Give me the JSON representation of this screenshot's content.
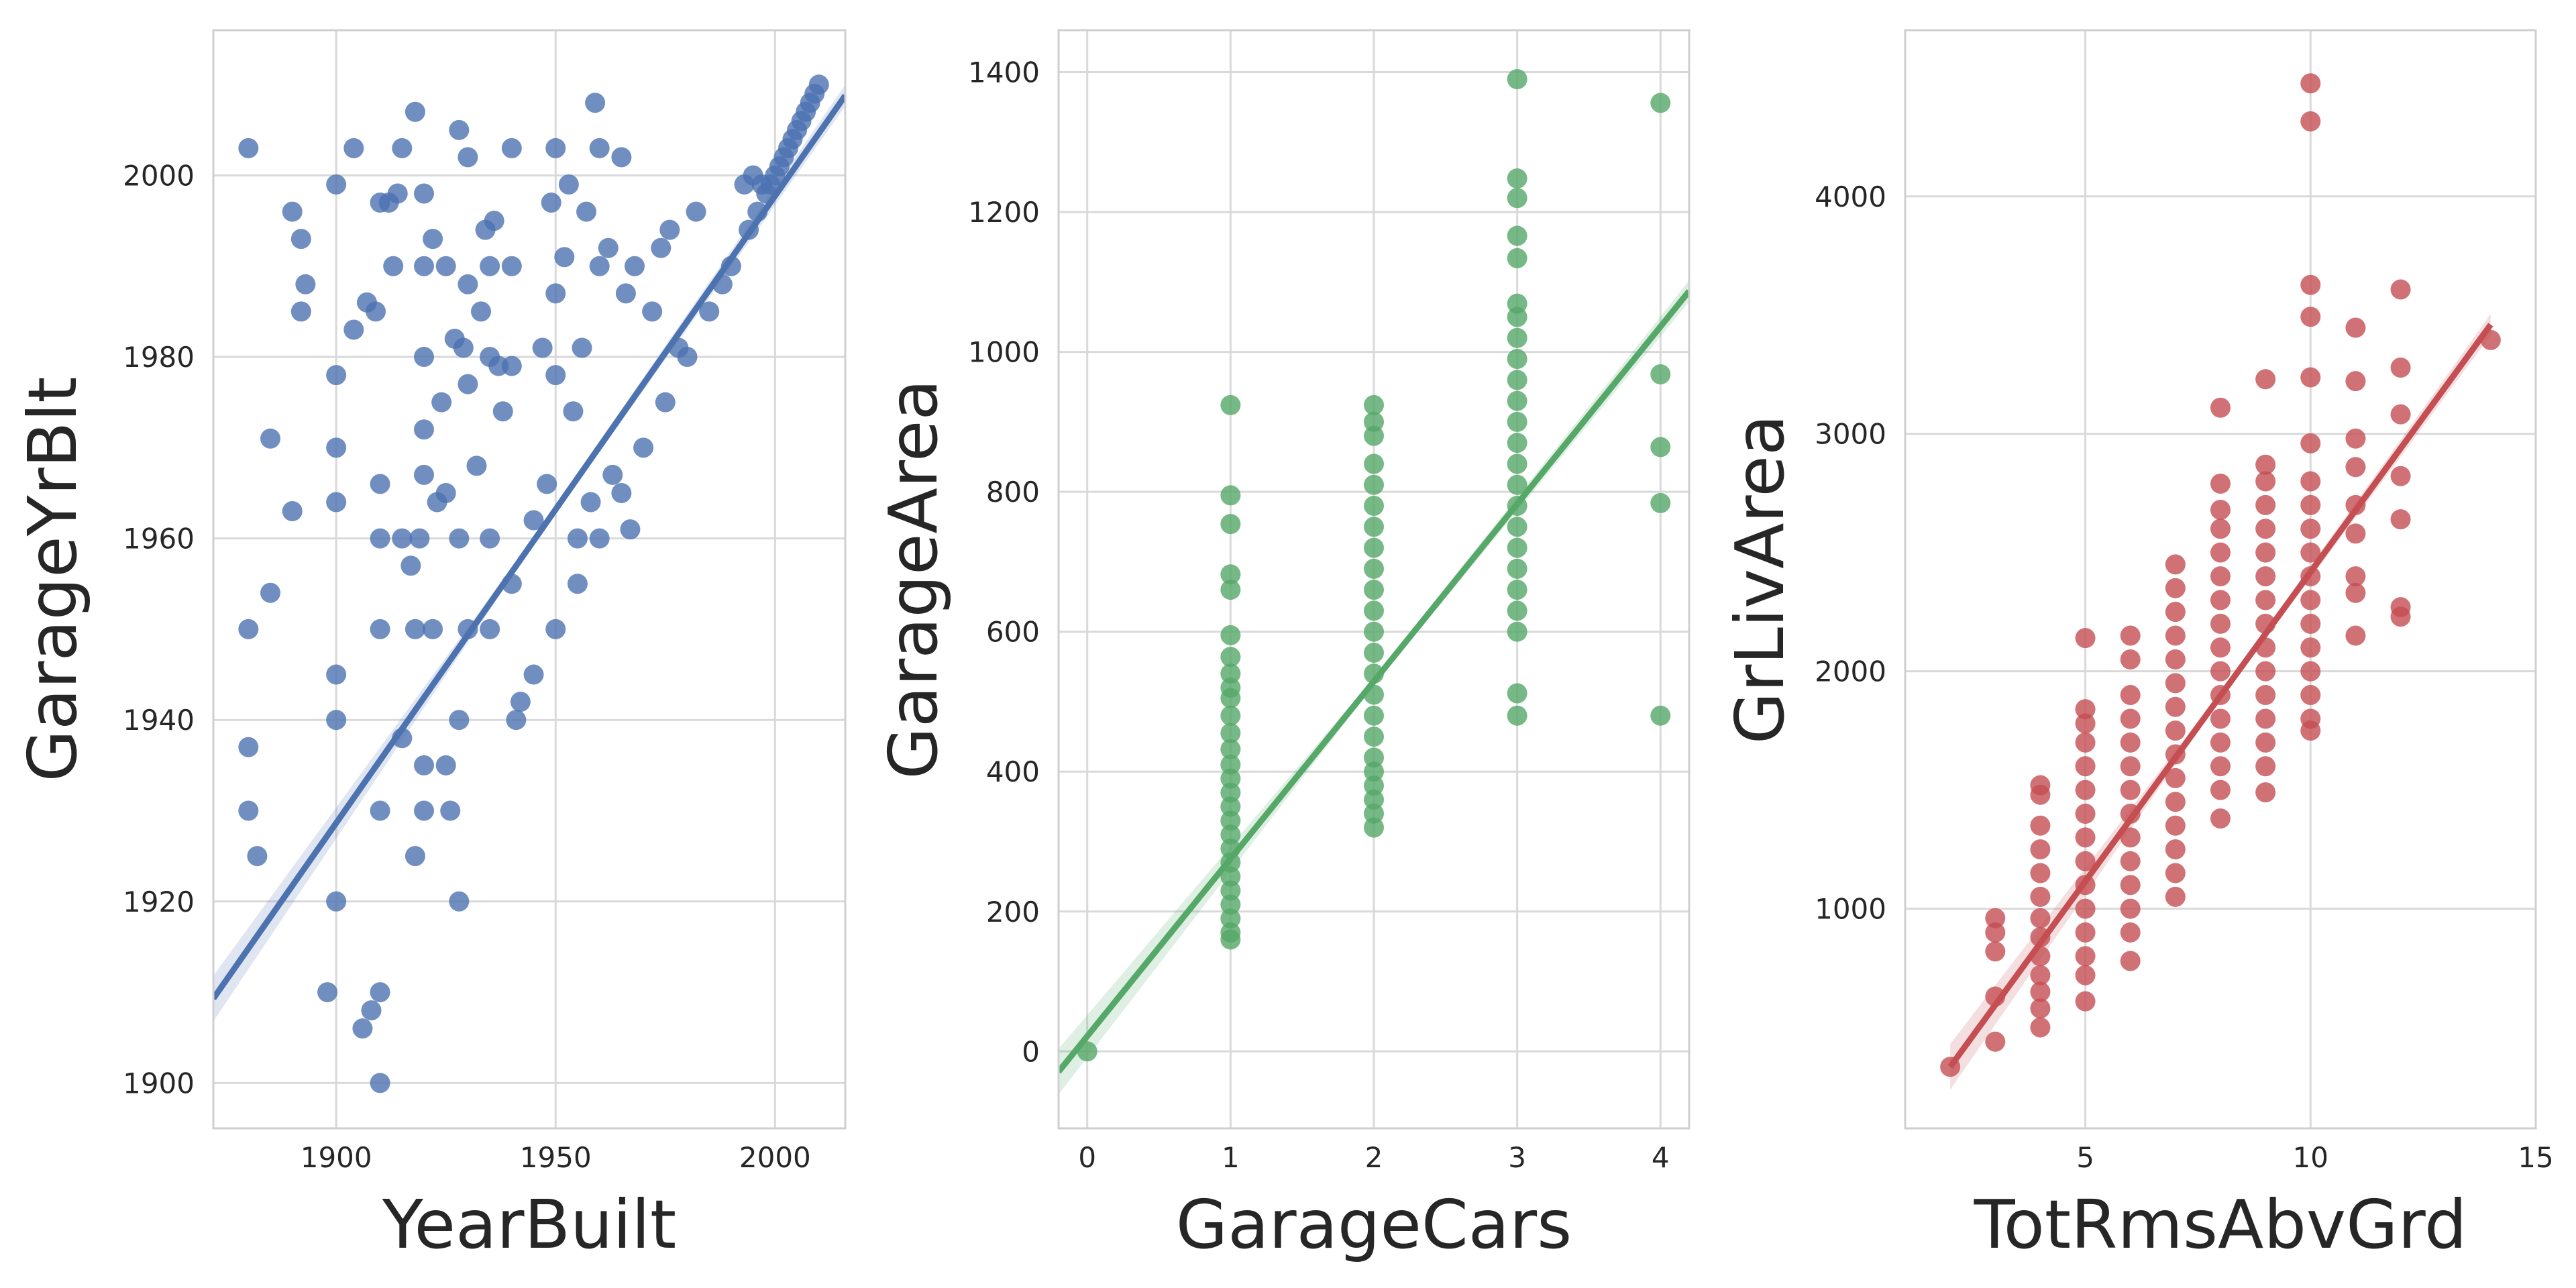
{
  "chart_data": [
    {
      "type": "scatter",
      "xlabel": "YearBuilt",
      "ylabel": "GarageYrBlt",
      "xlim": [
        1872,
        2016
      ],
      "ylim": [
        1895,
        2016
      ],
      "xticks": [
        1900,
        1950,
        2000
      ],
      "yticks": [
        1900,
        1920,
        1940,
        1960,
        1980,
        2000
      ],
      "color": "#4C72B0",
      "grid": true,
      "regression": {
        "x": [
          1872,
          2016
        ],
        "y": [
          1909.3,
          2008.8
        ]
      },
      "points": [
        [
          1880,
          2003
        ],
        [
          1880,
          1950
        ],
        [
          1880,
          1937
        ],
        [
          1880,
          1930
        ],
        [
          1882,
          1925
        ],
        [
          1885,
          1971
        ],
        [
          1885,
          1954
        ],
        [
          1890,
          1996
        ],
        [
          1890,
          1963
        ],
        [
          1892,
          1993
        ],
        [
          1892,
          1985
        ],
        [
          1893,
          1988
        ],
        [
          1898,
          1910
        ],
        [
          1900,
          1999
        ],
        [
          1900,
          1978
        ],
        [
          1900,
          1970
        ],
        [
          1900,
          1964
        ],
        [
          1900,
          1945
        ],
        [
          1900,
          1940
        ],
        [
          1900,
          1920
        ],
        [
          1904,
          2003
        ],
        [
          1904,
          1983
        ],
        [
          1906,
          1906
        ],
        [
          1907,
          1986
        ],
        [
          1908,
          1908
        ],
        [
          1909,
          1985
        ],
        [
          1910,
          1997
        ],
        [
          1910,
          1966
        ],
        [
          1910,
          1960
        ],
        [
          1910,
          1950
        ],
        [
          1910,
          1930
        ],
        [
          1910,
          1910
        ],
        [
          1910,
          1900
        ],
        [
          1912,
          1997
        ],
        [
          1913,
          1990
        ],
        [
          1914,
          1998
        ],
        [
          1915,
          1960
        ],
        [
          1915,
          1938
        ],
        [
          1915,
          2003
        ],
        [
          1917,
          1957
        ],
        [
          1918,
          2007
        ],
        [
          1918,
          1950
        ],
        [
          1918,
          1925
        ],
        [
          1919,
          1960
        ],
        [
          1920,
          1998
        ],
        [
          1920,
          1990
        ],
        [
          1920,
          1980
        ],
        [
          1920,
          1972
        ],
        [
          1920,
          1967
        ],
        [
          1920,
          1935
        ],
        [
          1920,
          1930
        ],
        [
          1922,
          1993
        ],
        [
          1922,
          1950
        ],
        [
          1923,
          1964
        ],
        [
          1924,
          1975
        ],
        [
          1925,
          1990
        ],
        [
          1925,
          1965
        ],
        [
          1925,
          1935
        ],
        [
          1926,
          1930
        ],
        [
          1927,
          1982
        ],
        [
          1928,
          2005
        ],
        [
          1928,
          1960
        ],
        [
          1928,
          1940
        ],
        [
          1928,
          1920
        ],
        [
          1929,
          1981
        ],
        [
          1930,
          2002
        ],
        [
          1930,
          1988
        ],
        [
          1930,
          1977
        ],
        [
          1930,
          1950
        ],
        [
          1932,
          1968
        ],
        [
          1933,
          1985
        ],
        [
          1934,
          1994
        ],
        [
          1935,
          1990
        ],
        [
          1935,
          1980
        ],
        [
          1935,
          1960
        ],
        [
          1935,
          1950
        ],
        [
          1936,
          1995
        ],
        [
          1937,
          1979
        ],
        [
          1938,
          1974
        ],
        [
          1940,
          2003
        ],
        [
          1940,
          1990
        ],
        [
          1940,
          1979
        ],
        [
          1940,
          1955
        ],
        [
          1941,
          1940
        ],
        [
          1942,
          1942
        ],
        [
          1945,
          1962
        ],
        [
          1945,
          1945
        ],
        [
          1947,
          1981
        ],
        [
          1948,
          1966
        ],
        [
          1949,
          1997
        ],
        [
          1950,
          2003
        ],
        [
          1950,
          1987
        ],
        [
          1950,
          1978
        ],
        [
          1950,
          1950
        ],
        [
          1952,
          1991
        ],
        [
          1953,
          1999
        ],
        [
          1954,
          1974
        ],
        [
          1955,
          1960
        ],
        [
          1955,
          1955
        ],
        [
          1956,
          1981
        ],
        [
          1957,
          1996
        ],
        [
          1958,
          1964
        ],
        [
          1959,
          2008
        ],
        [
          1960,
          2003
        ],
        [
          1960,
          1990
        ],
        [
          1960,
          1960
        ],
        [
          1962,
          1992
        ],
        [
          1963,
          1967
        ],
        [
          1965,
          2002
        ],
        [
          1965,
          1965
        ],
        [
          1966,
          1987
        ],
        [
          1967,
          1961
        ],
        [
          1968,
          1990
        ],
        [
          1970,
          1970
        ],
        [
          1972,
          1985
        ],
        [
          1974,
          1992
        ],
        [
          1975,
          1975
        ],
        [
          1976,
          1994
        ],
        [
          1978,
          1981
        ],
        [
          1980,
          1980
        ],
        [
          1982,
          1996
        ],
        [
          1985,
          1985
        ],
        [
          1988,
          1988
        ],
        [
          1990,
          1990
        ],
        [
          1993,
          1999
        ],
        [
          1994,
          1994
        ],
        [
          1995,
          2000
        ],
        [
          1996,
          1996
        ],
        [
          1997,
          1999
        ],
        [
          1998,
          1998
        ],
        [
          1999,
          1999
        ],
        [
          2000,
          2000
        ],
        [
          2001,
          2001
        ],
        [
          2002,
          2002
        ],
        [
          2003,
          2003
        ],
        [
          2004,
          2004
        ],
        [
          2005,
          2005
        ],
        [
          2006,
          2006
        ],
        [
          2007,
          2007
        ],
        [
          2008,
          2008
        ],
        [
          2009,
          2009
        ],
        [
          2010,
          2010
        ]
      ]
    },
    {
      "type": "scatter",
      "xlabel": "GarageCars",
      "ylabel": "GarageArea",
      "xlim": [
        -0.2,
        4.2
      ],
      "ylim": [
        -110,
        1460
      ],
      "xticks": [
        0,
        1,
        2,
        3,
        4
      ],
      "yticks": [
        0,
        200,
        400,
        600,
        800,
        1000,
        1200,
        1400
      ],
      "color": "#55A868",
      "grid": true,
      "regression": {
        "x": [
          -0.2,
          4.2
        ],
        "y": [
          -29,
          1087
        ]
      },
      "points": [
        [
          0,
          0
        ],
        [
          1,
          924
        ],
        [
          1,
          795
        ],
        [
          1,
          754
        ],
        [
          1,
          682
        ],
        [
          1,
          660
        ],
        [
          1,
          595
        ],
        [
          1,
          564
        ],
        [
          1,
          540
        ],
        [
          1,
          520
        ],
        [
          1,
          505
        ],
        [
          1,
          480
        ],
        [
          1,
          455
        ],
        [
          1,
          432
        ],
        [
          1,
          410
        ],
        [
          1,
          390
        ],
        [
          1,
          370
        ],
        [
          1,
          350
        ],
        [
          1,
          330
        ],
        [
          1,
          310
        ],
        [
          1,
          290
        ],
        [
          1,
          270
        ],
        [
          1,
          250
        ],
        [
          1,
          230
        ],
        [
          1,
          210
        ],
        [
          1,
          190
        ],
        [
          1,
          170
        ],
        [
          1,
          160
        ],
        [
          2,
          924
        ],
        [
          2,
          900
        ],
        [
          2,
          880
        ],
        [
          2,
          840
        ],
        [
          2,
          810
        ],
        [
          2,
          780
        ],
        [
          2,
          750
        ],
        [
          2,
          720
        ],
        [
          2,
          690
        ],
        [
          2,
          660
        ],
        [
          2,
          630
        ],
        [
          2,
          600
        ],
        [
          2,
          570
        ],
        [
          2,
          540
        ],
        [
          2,
          510
        ],
        [
          2,
          480
        ],
        [
          2,
          450
        ],
        [
          2,
          420
        ],
        [
          2,
          400
        ],
        [
          2,
          380
        ],
        [
          2,
          360
        ],
        [
          2,
          340
        ],
        [
          2,
          320
        ],
        [
          3,
          1390
        ],
        [
          3,
          1248
        ],
        [
          3,
          1220
        ],
        [
          3,
          1166
        ],
        [
          3,
          1134
        ],
        [
          3,
          1069
        ],
        [
          3,
          1050
        ],
        [
          3,
          1020
        ],
        [
          3,
          990
        ],
        [
          3,
          960
        ],
        [
          3,
          930
        ],
        [
          3,
          900
        ],
        [
          3,
          870
        ],
        [
          3,
          840
        ],
        [
          3,
          810
        ],
        [
          3,
          780
        ],
        [
          3,
          750
        ],
        [
          3,
          720
        ],
        [
          3,
          690
        ],
        [
          3,
          660
        ],
        [
          3,
          630
        ],
        [
          3,
          600
        ],
        [
          3,
          512
        ],
        [
          3,
          480
        ],
        [
          4,
          1356
        ],
        [
          4,
          968
        ],
        [
          4,
          864
        ],
        [
          4,
          784
        ],
        [
          4,
          480
        ]
      ]
    },
    {
      "type": "scatter",
      "xlabel": "TotRmsAbvGrd",
      "ylabel": "GrLivArea",
      "xlim": [
        1,
        15
      ],
      "ylim": [
        75,
        4700
      ],
      "xticks": [
        5,
        10,
        15
      ],
      "yticks": [
        1000,
        2000,
        3000,
        4000
      ],
      "color": "#C44E52",
      "grid": true,
      "regression": {
        "x": [
          2,
          14
        ],
        "y": [
          334,
          3460
        ]
      },
      "points": [
        [
          2,
          334
        ],
        [
          3,
          960
        ],
        [
          3,
          900
        ],
        [
          3,
          820
        ],
        [
          3,
          630
        ],
        [
          3,
          440
        ],
        [
          4,
          1520
        ],
        [
          4,
          1480
        ],
        [
          4,
          1350
        ],
        [
          4,
          1250
        ],
        [
          4,
          1150
        ],
        [
          4,
          1050
        ],
        [
          4,
          960
        ],
        [
          4,
          880
        ],
        [
          4,
          800
        ],
        [
          4,
          720
        ],
        [
          4,
          650
        ],
        [
          4,
          580
        ],
        [
          4,
          500
        ],
        [
          5,
          2140
        ],
        [
          5,
          1840
        ],
        [
          5,
          1780
        ],
        [
          5,
          1700
        ],
        [
          5,
          1600
        ],
        [
          5,
          1500
        ],
        [
          5,
          1400
        ],
        [
          5,
          1300
        ],
        [
          5,
          1200
        ],
        [
          5,
          1100
        ],
        [
          5,
          1000
        ],
        [
          5,
          900
        ],
        [
          5,
          800
        ],
        [
          5,
          720
        ],
        [
          5,
          610
        ],
        [
          6,
          2150
        ],
        [
          6,
          2050
        ],
        [
          6,
          1900
        ],
        [
          6,
          1800
        ],
        [
          6,
          1700
        ],
        [
          6,
          1600
        ],
        [
          6,
          1500
        ],
        [
          6,
          1400
        ],
        [
          6,
          1300
        ],
        [
          6,
          1200
        ],
        [
          6,
          1100
        ],
        [
          6,
          1000
        ],
        [
          6,
          900
        ],
        [
          6,
          780
        ],
        [
          7,
          2450
        ],
        [
          7,
          2350
        ],
        [
          7,
          2250
        ],
        [
          7,
          2150
        ],
        [
          7,
          2050
        ],
        [
          7,
          1950
        ],
        [
          7,
          1850
        ],
        [
          7,
          1750
        ],
        [
          7,
          1650
        ],
        [
          7,
          1550
        ],
        [
          7,
          1450
        ],
        [
          7,
          1350
        ],
        [
          7,
          1250
        ],
        [
          7,
          1150
        ],
        [
          7,
          1050
        ],
        [
          8,
          3110
        ],
        [
          8,
          2790
        ],
        [
          8,
          2680
        ],
        [
          8,
          2600
        ],
        [
          8,
          2500
        ],
        [
          8,
          2400
        ],
        [
          8,
          2300
        ],
        [
          8,
          2200
        ],
        [
          8,
          2100
        ],
        [
          8,
          2000
        ],
        [
          8,
          1900
        ],
        [
          8,
          1800
        ],
        [
          8,
          1700
        ],
        [
          8,
          1600
        ],
        [
          8,
          1500
        ],
        [
          8,
          1380
        ],
        [
          9,
          3230
        ],
        [
          9,
          2870
        ],
        [
          9,
          2800
        ],
        [
          9,
          2700
        ],
        [
          9,
          2600
        ],
        [
          9,
          2500
        ],
        [
          9,
          2400
        ],
        [
          9,
          2300
        ],
        [
          9,
          2200
        ],
        [
          9,
          2100
        ],
        [
          9,
          2000
        ],
        [
          9,
          1900
        ],
        [
          9,
          1800
        ],
        [
          9,
          1700
        ],
        [
          9,
          1600
        ],
        [
          9,
          1490
        ],
        [
          10,
          4476
        ],
        [
          10,
          4316
        ],
        [
          10,
          3627
        ],
        [
          10,
          3493
        ],
        [
          10,
          3238
        ],
        [
          10,
          2960
        ],
        [
          10,
          2800
        ],
        [
          10,
          2700
        ],
        [
          10,
          2600
        ],
        [
          10,
          2500
        ],
        [
          10,
          2400
        ],
        [
          10,
          2300
        ],
        [
          10,
          2200
        ],
        [
          10,
          2100
        ],
        [
          10,
          2000
        ],
        [
          10,
          1900
        ],
        [
          10,
          1800
        ],
        [
          10,
          1750
        ],
        [
          11,
          3447
        ],
        [
          11,
          3222
        ],
        [
          11,
          2980
        ],
        [
          11,
          2860
        ],
        [
          11,
          2700
        ],
        [
          11,
          2580
        ],
        [
          11,
          2400
        ],
        [
          11,
          2330
        ],
        [
          11,
          2150
        ],
        [
          12,
          3608
        ],
        [
          12,
          3279
        ],
        [
          12,
          3082
        ],
        [
          12,
          2822
        ],
        [
          12,
          2640
        ],
        [
          12,
          2270
        ],
        [
          12,
          2230
        ],
        [
          14,
          3395
        ]
      ]
    }
  ]
}
